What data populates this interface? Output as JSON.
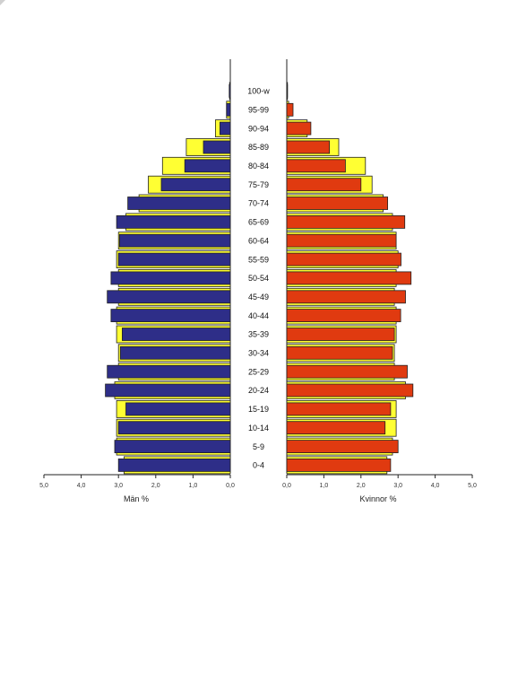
{
  "chart_data": {
    "type": "bar",
    "subtype": "population-pyramid",
    "age_groups": [
      "100-w",
      "95-99",
      "90-94",
      "85-89",
      "80-84",
      "75-79",
      "70-74",
      "65-69",
      "60-64",
      "55-59",
      "50-54",
      "45-49",
      "40-44",
      "35-39",
      "30-34",
      "25-29",
      "20-24",
      "15-19",
      "10-14",
      "5-9",
      "0-4"
    ],
    "left_axis": {
      "label": "Män %",
      "ticks": [
        "5,0",
        "4,0",
        "3,0",
        "2,0",
        "1,0",
        "0,0"
      ],
      "range": [
        0,
        5
      ]
    },
    "right_axis": {
      "label": "Kvinnor %",
      "ticks": [
        "0,0",
        "1,0",
        "2,0",
        "3,0",
        "4,0",
        "5,0"
      ],
      "range": [
        0,
        5
      ]
    },
    "series": [
      {
        "side": "left",
        "role": "background",
        "color": "#ffff33",
        "values": [
          0.02,
          0.1,
          0.4,
          1.18,
          1.82,
          2.2,
          2.45,
          2.8,
          3.0,
          3.05,
          3.0,
          3.0,
          3.05,
          3.05,
          3.0,
          3.0,
          3.1,
          3.05,
          3.05,
          3.05,
          2.85
        ]
      },
      {
        "side": "left",
        "role": "foreground",
        "color": "#2e2e88",
        "values": [
          0.03,
          0.1,
          0.28,
          0.72,
          1.22,
          1.85,
          2.75,
          3.05,
          2.97,
          3.0,
          3.2,
          3.3,
          3.2,
          2.9,
          2.95,
          3.3,
          3.35,
          2.8,
          3.0,
          3.1,
          3.0
        ]
      },
      {
        "side": "right",
        "role": "background",
        "color": "#ffff33",
        "values": [
          0.02,
          0.05,
          0.55,
          1.4,
          2.12,
          2.3,
          2.6,
          2.85,
          2.95,
          3.0,
          2.95,
          2.9,
          2.95,
          2.95,
          2.9,
          2.9,
          3.2,
          2.95,
          2.95,
          2.85,
          2.7
        ]
      },
      {
        "side": "right",
        "role": "foreground",
        "color": "#e03a10",
        "values": [
          0.02,
          0.17,
          0.65,
          1.15,
          1.58,
          2.0,
          2.72,
          3.18,
          2.95,
          3.08,
          3.35,
          3.2,
          3.07,
          2.9,
          2.85,
          3.25,
          3.4,
          2.8,
          2.65,
          3.0,
          2.8
        ]
      }
    ]
  }
}
